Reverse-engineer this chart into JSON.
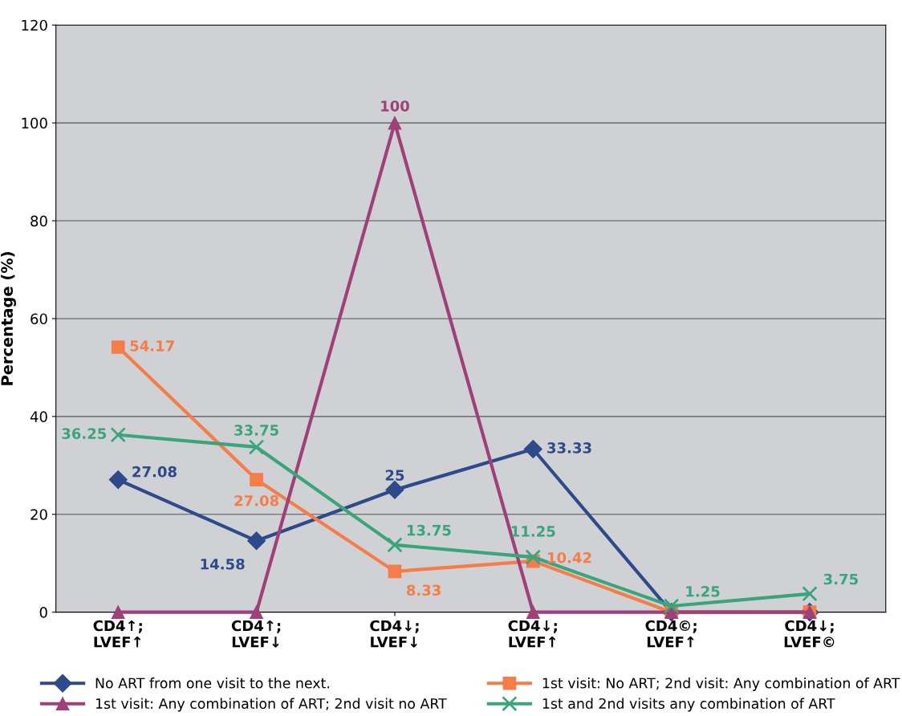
{
  "chart_data": {
    "type": "line",
    "ylabel": "Percentage (%)",
    "categories": [
      "CD4↑;\nLVEF↑",
      "CD4↑;\nLVEF↓",
      "CD4↓;\nLVEF↓",
      "CD4↓;\nLVEF↑",
      "CD4©;\nLVEF↑",
      "CD4↓;\nLVEF©"
    ],
    "series": [
      {
        "name": "No ART from one visit to the next.",
        "color": "#2e4a8a",
        "marker": "diamond",
        "values": [
          27.08,
          14.58,
          25,
          33.33,
          0,
          0
        ],
        "value_labels": [
          "27.08",
          "14.58",
          "25",
          "33.33",
          null,
          null
        ]
      },
      {
        "name": "1st visit: No ART; 2nd visit: Any combination of ART",
        "color": "#f47d4a",
        "marker": "square",
        "values": [
          54.17,
          27.08,
          8.33,
          10.42,
          0,
          0
        ],
        "value_labels": [
          "54.17",
          "27.08",
          "8.33",
          "10.42",
          null,
          null
        ]
      },
      {
        "name": "1st visit: Any combination of ART; 2nd visit no ART",
        "color": "#a0407a",
        "marker": "triangle",
        "values": [
          0,
          0,
          100,
          0,
          0,
          0
        ],
        "value_labels": [
          null,
          null,
          "100",
          null,
          null,
          null
        ]
      },
      {
        "name": "1st and 2nd visits any combination of ART",
        "color": "#3aa57a",
        "marker": "cross",
        "values": [
          36.25,
          33.75,
          13.75,
          11.25,
          1.25,
          3.75
        ],
        "value_labels": [
          "36.25",
          "33.75",
          "13.75",
          "11.25",
          "1.25",
          "3.75"
        ]
      }
    ],
    "ylim": [
      0,
      120
    ],
    "yticks": [
      0,
      20,
      40,
      60,
      80,
      100,
      120
    ],
    "grid": "y",
    "legend": "bottom",
    "line_style": "solid"
  }
}
